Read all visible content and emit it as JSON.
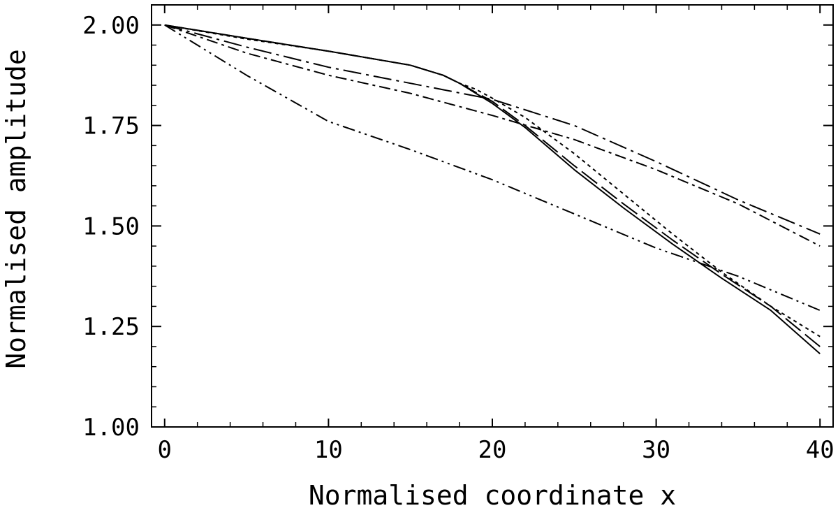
{
  "chart_data": {
    "type": "line",
    "title": "",
    "xlabel": "Normalised coordinate x",
    "ylabel": "Normalised amplitude",
    "xlim": [
      -0.8,
      40.8
    ],
    "ylim": [
      1.0,
      2.05
    ],
    "grid": false,
    "legend": "none",
    "x_ticks": [
      0,
      10,
      20,
      30,
      40
    ],
    "x_tick_labels": [
      "0",
      "10",
      "20",
      "30",
      "40"
    ],
    "y_ticks": [
      1.0,
      1.25,
      1.5,
      1.75,
      2.0
    ],
    "y_tick_labels": [
      "1.00",
      "1.25",
      "1.50",
      "1.75",
      "2.00"
    ],
    "series": [
      {
        "style": "solid",
        "x": [
          0,
          5,
          10,
          15,
          17,
          18,
          19,
          20,
          22,
          25,
          28,
          31,
          34,
          37,
          40
        ],
        "y": [
          2.0,
          1.967,
          1.935,
          1.9,
          1.875,
          1.855,
          1.83,
          1.805,
          1.745,
          1.64,
          1.545,
          1.455,
          1.37,
          1.29,
          1.182
        ]
      },
      {
        "style": "long-dash",
        "x": [
          0,
          5,
          10,
          15,
          17,
          18,
          19,
          20,
          22,
          25,
          28,
          31,
          34,
          37,
          40
        ],
        "y": [
          2.0,
          1.967,
          1.935,
          1.9,
          1.875,
          1.855,
          1.832,
          1.81,
          1.75,
          1.65,
          1.555,
          1.465,
          1.38,
          1.3,
          1.2
        ]
      },
      {
        "style": "dotted",
        "x": [
          0,
          5,
          10,
          15,
          17,
          18,
          19,
          20,
          22,
          25,
          28,
          31,
          34,
          37,
          40
        ],
        "y": [
          2.0,
          1.965,
          1.935,
          1.9,
          1.875,
          1.855,
          1.84,
          1.818,
          1.77,
          1.68,
          1.58,
          1.48,
          1.385,
          1.3,
          1.225
        ]
      },
      {
        "style": "long-dash-dot",
        "x": [
          0,
          5,
          10,
          15,
          20,
          25,
          30,
          35,
          40
        ],
        "y": [
          2.0,
          1.945,
          1.895,
          1.855,
          1.815,
          1.75,
          1.66,
          1.565,
          1.48
        ]
      },
      {
        "style": "dash-dot",
        "x": [
          0,
          5,
          10,
          15,
          20,
          25,
          30,
          35,
          40
        ],
        "y": [
          2.0,
          1.93,
          1.875,
          1.83,
          1.775,
          1.715,
          1.64,
          1.555,
          1.45
        ]
      },
      {
        "style": "dash-dot-dot",
        "x": [
          0,
          5,
          10,
          15,
          20,
          25,
          30,
          35,
          40
        ],
        "y": [
          2.0,
          1.875,
          1.76,
          1.69,
          1.615,
          1.53,
          1.445,
          1.375,
          1.29
        ]
      }
    ]
  }
}
